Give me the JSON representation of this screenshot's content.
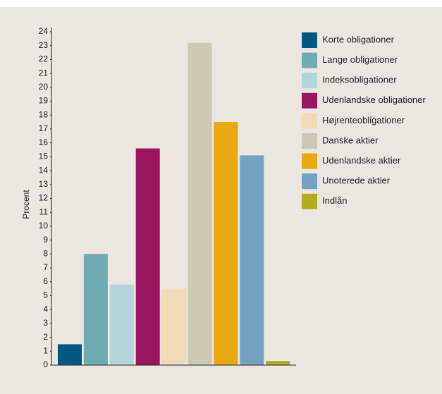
{
  "chart_data": {
    "type": "bar",
    "ylabel": "Procent",
    "categories": [
      "Korte obligationer",
      "Lange obligationer",
      "Indeksobligationer",
      "Udenlandske obligationer",
      "Højrenteobligationer",
      "Danske aktier",
      "Udenlandske aktier",
      "Unoterede aktier",
      "Indlån"
    ],
    "values": [
      1.5,
      8.0,
      5.8,
      15.6,
      5.5,
      23.2,
      17.5,
      15.1,
      0.3
    ],
    "colors": [
      "#005a7f",
      "#6eabb3",
      "#b3d4d8",
      "#9b1560",
      "#f2d9b7",
      "#cdc8b2",
      "#e8a812",
      "#74a2c3",
      "#b5ab1f"
    ],
    "ylim": [
      0,
      24
    ],
    "yticks": [
      0,
      1,
      2,
      3,
      4,
      5,
      6,
      7,
      8,
      9,
      10,
      11,
      12,
      13,
      14,
      15,
      16,
      17,
      18,
      19,
      20,
      21,
      22,
      23,
      24
    ],
    "legend": "right"
  }
}
